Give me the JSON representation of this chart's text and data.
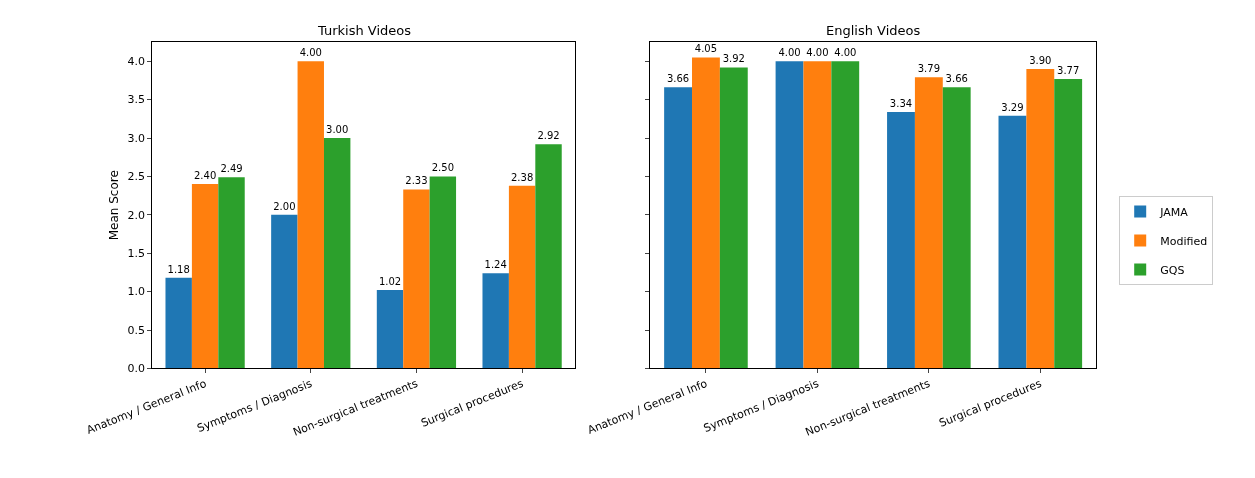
{
  "chart_data": [
    {
      "type": "bar",
      "title": "Turkish Videos",
      "ylabel": "Mean Score",
      "categories": [
        "Anatomy / General Info",
        "Symptoms / Diagnosis",
        "Non-surgical treatments",
        "Surgical procedures"
      ],
      "series": [
        {
          "color": "#1f77b4",
          "values": [
            1.18,
            2.0,
            1.02,
            1.24
          ],
          "value_labels": [
            "1.18",
            "2.00",
            "1.02",
            "1.24"
          ]
        },
        {
          "color": "#ff7f0e",
          "values": [
            2.4,
            4.0,
            2.33,
            2.38
          ],
          "value_labels": [
            "2.40",
            "4.00",
            "2.33",
            "2.38"
          ]
        },
        {
          "color": "#2ca02c",
          "values": [
            2.49,
            3.0,
            2.5,
            2.92
          ],
          "value_labels": [
            "2.49",
            "3.00",
            "2.50",
            "2.92"
          ]
        }
      ],
      "ylim": [
        0,
        4.25
      ],
      "yticks": [
        {
          "value": 0,
          "label": "0.0"
        },
        0.5,
        {
          "value": 1,
          "label": "1.0"
        },
        1.5,
        {
          "value": 2,
          "label": "2.0"
        },
        2.5,
        {
          "value": 3,
          "label": "3.0"
        },
        3.5,
        {
          "value": 4,
          "label": "4.0"
        }
      ]
    },
    {
      "type": "bar",
      "title": "English Videos",
      "categories": [
        "Anatomy / General Info",
        "Symptoms / Diagnosis",
        "Non-surgical treatments",
        "Surgical procedures"
      ],
      "series": [
        {
          "name": "JAMA",
          "color": "#1f77b4",
          "values": [
            3.66,
            4.0,
            3.34,
            3.29
          ],
          "value_labels": [
            "3.66",
            "4.00",
            "3.34",
            "3.29"
          ]
        },
        {
          "name": "Modified",
          "color": "#ff7f0e",
          "values": [
            4.05,
            4.0,
            3.79,
            3.9
          ],
          "value_labels": [
            "4.05",
            "4.00",
            "3.79",
            "3.90"
          ]
        },
        {
          "name": "GQS",
          "color": "#2ca02c",
          "values": [
            3.92,
            4.0,
            3.66,
            3.77
          ],
          "value_labels": [
            "3.92",
            "4.00",
            "3.66",
            "3.77"
          ]
        }
      ],
      "ylim": [
        0,
        4.25
      ],
      "yticks": [
        {
          "value": 0,
          "label": null
        },
        {
          "value": 0.5,
          "label": null
        },
        {
          "value": 1,
          "label": null
        },
        {
          "value": 1.5,
          "label": null
        },
        {
          "value": 2,
          "label": null
        },
        {
          "value": 2.5,
          "label": null
        },
        {
          "value": 3,
          "label": null
        },
        {
          "value": 3.5,
          "label": null
        },
        {
          "value": 4,
          "label": null
        }
      ],
      "tick_labels": "x",
      "legend": "right"
    }
  ]
}
